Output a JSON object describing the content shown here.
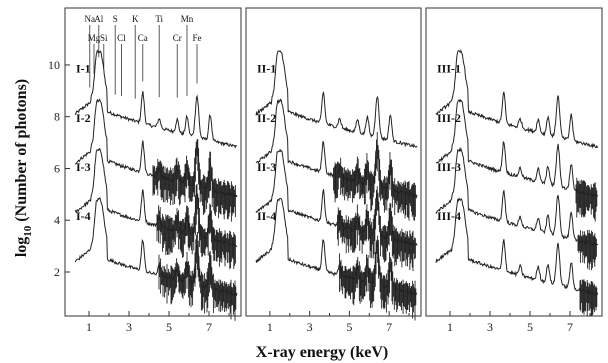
{
  "chart_data": {
    "type": "line",
    "xlabel": "X-ray energy (keV)",
    "ylabel_main": "log",
    "ylabel_sub": "10",
    "ylabel_rest": " (Number of photons)",
    "xlim": [
      0,
      8.4
    ],
    "ylim": [
      0.3,
      12.2
    ],
    "x_ticks": [
      1,
      3,
      5,
      7
    ],
    "y_ticks": [
      2,
      4,
      6,
      8,
      10
    ],
    "elements": [
      {
        "symbol": "Na",
        "energy": 1.04
      },
      {
        "symbol": "Mg",
        "energy": 1.25
      },
      {
        "symbol": "Al",
        "energy": 1.49
      },
      {
        "symbol": "Si",
        "energy": 1.74
      },
      {
        "symbol": "S",
        "energy": 2.31
      },
      {
        "symbol": "Cl",
        "energy": 2.62
      },
      {
        "symbol": "K",
        "energy": 3.31
      },
      {
        "symbol": "Ca",
        "energy": 3.69
      },
      {
        "symbol": "Ti",
        "energy": 4.51
      },
      {
        "symbol": "Cr",
        "energy": 5.41
      },
      {
        "symbol": "Mn",
        "energy": 5.9
      },
      {
        "symbol": "Fe",
        "energy": 6.4
      }
    ],
    "panels": [
      {
        "name": "I",
        "series": [
          {
            "name": "I-1",
            "offset": 9.0,
            "noise_start": 8.6
          },
          {
            "name": "I-2",
            "offset": 7.1,
            "noise_start": 4.2
          },
          {
            "name": "I-3",
            "offset": 5.2,
            "noise_start": 4.4
          },
          {
            "name": "I-4",
            "offset": 3.3,
            "noise_start": 4.5
          }
        ]
      },
      {
        "name": "II",
        "series": [
          {
            "name": "II-1",
            "offset": 9.0,
            "noise_start": 8.6
          },
          {
            "name": "II-2",
            "offset": 7.1,
            "noise_start": 4.2
          },
          {
            "name": "II-3",
            "offset": 5.2,
            "noise_start": 4.4
          },
          {
            "name": "II-4",
            "offset": 3.3,
            "noise_start": 4.5
          }
        ]
      },
      {
        "name": "III",
        "series": [
          {
            "name": "III-1",
            "offset": 9.0,
            "noise_start": 8.6
          },
          {
            "name": "III-2",
            "offset": 7.1,
            "noise_start": 7.3
          },
          {
            "name": "III-3",
            "offset": 5.2,
            "noise_start": 7.4
          },
          {
            "name": "III-4",
            "offset": 3.3,
            "noise_start": 7.5
          }
        ]
      }
    ]
  }
}
